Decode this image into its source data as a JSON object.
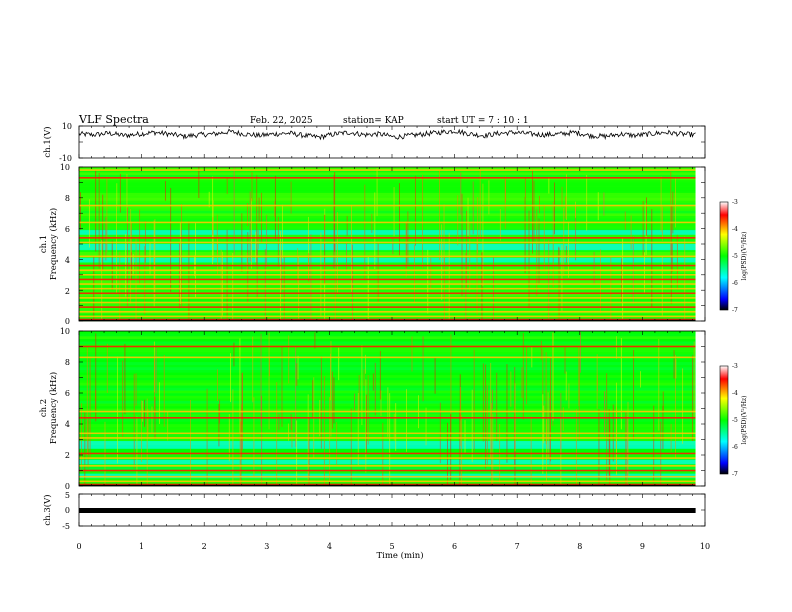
{
  "header": {
    "title": "VLF Spectra",
    "date": "Feb. 22, 2025",
    "station": "station= KAP",
    "start_ut": "start  UT =   7 : 10 : 1"
  },
  "chart_data": [
    {
      "type": "line",
      "name": "ch1-waveform",
      "ylabel": "ch.1(V)",
      "ylim": [
        -10,
        10
      ],
      "yticks": [
        "10",
        "-10"
      ],
      "xlim": [
        0,
        10
      ],
      "x_end": 9.85,
      "shape": [
        5,
        4.5,
        5.5,
        4,
        5,
        6,
        5,
        3.5,
        4.5,
        5,
        6.5,
        5,
        4,
        5,
        5.5,
        4,
        3,
        5,
        6,
        4.5,
        5,
        3,
        4,
        5,
        6,
        7,
        5,
        4,
        5.5,
        6,
        5,
        4.5,
        5,
        6,
        4,
        3.5,
        5,
        4,
        5,
        6,
        5,
        4.5
      ]
    },
    {
      "type": "heatmap",
      "name": "ch1-spectrogram",
      "ylabel": "ch.1",
      "ylabel2": "Frequency (kHz)",
      "ylim": [
        0,
        10
      ],
      "yticks": [
        "0",
        "2",
        "4",
        "6",
        "8",
        "10"
      ],
      "xlim": [
        0,
        10
      ],
      "x_end": 9.85,
      "colorbar": {
        "label": "log(PSD)(V²/Hz)",
        "range": [
          -7,
          -3
        ],
        "ticks": [
          "-3",
          "-4",
          "-5",
          "-6",
          "-7"
        ]
      },
      "bands_khz": [
        0.1,
        0.3,
        0.6,
        0.9,
        1.2,
        1.5,
        1.8,
        2.1,
        2.4,
        2.7,
        3.0,
        3.3,
        3.6,
        4.2,
        5.1,
        5.4,
        6.4,
        7.5,
        9.3,
        9.8
      ],
      "blue_bands_khz": [
        [
          3.8,
          4.1
        ],
        [
          4.6,
          5.0
        ],
        [
          5.6,
          5.9
        ]
      ]
    },
    {
      "type": "heatmap",
      "name": "ch2-spectrogram",
      "ylabel": "ch.2",
      "ylabel2": "Frequency (kHz)",
      "ylim": [
        0,
        10
      ],
      "yticks": [
        "0",
        "2",
        "4",
        "6",
        "8",
        "10"
      ],
      "xlim": [
        0,
        10
      ],
      "x_end": 9.85,
      "colorbar": {
        "label": "log(PSD)(V²/Hz)",
        "range": [
          -7,
          -3
        ],
        "ticks": [
          "-3",
          "-4",
          "-5",
          "-6",
          "-7"
        ]
      },
      "bands_khz": [
        0.1,
        0.3,
        0.6,
        1.0,
        1.3,
        1.8,
        2.1,
        3.1,
        3.4,
        4.4,
        4.8,
        8.3,
        9.0
      ],
      "blue_bands_khz": [
        [
          2.4,
          2.9
        ],
        [
          1.4,
          1.7
        ],
        [
          0.5,
          0.8
        ]
      ]
    },
    {
      "type": "line",
      "name": "ch3-waveform",
      "ylabel": "ch.3(V)",
      "ylim": [
        -5,
        5
      ],
      "yticks": [
        "5",
        "0",
        "-5"
      ],
      "xlim": [
        0,
        10
      ],
      "x_end": 9.85,
      "level": 0
    }
  ],
  "xaxis": {
    "label": "Time  (min)",
    "ticks": [
      "0",
      "1",
      "2",
      "3",
      "4",
      "5",
      "6",
      "7",
      "8",
      "9",
      "10"
    ]
  }
}
